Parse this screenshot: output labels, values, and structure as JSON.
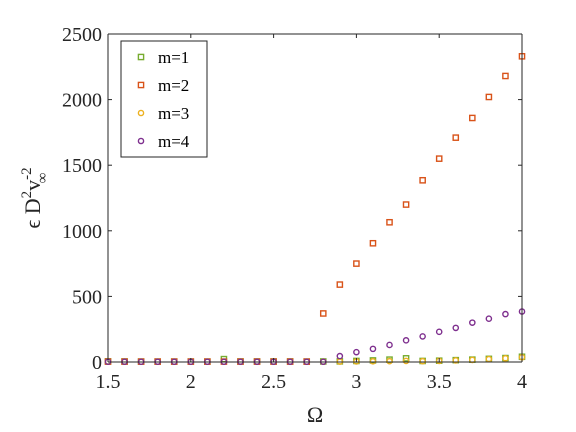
{
  "chart_data": {
    "type": "scatter",
    "xlabel": "Ω",
    "ylabel": "ε D²v∞⁻²",
    "ylabel_parts": {
      "main": "ϵ D",
      "sup1": "2",
      "v": "v",
      "sub": "∞",
      "sup2": "-2"
    },
    "xlim": [
      1.5,
      4
    ],
    "ylim": [
      0,
      2500
    ],
    "xticks": [
      "1.5",
      "2",
      "2.5",
      "3",
      "3.5",
      "4"
    ],
    "yticks": [
      "0",
      "500",
      "1000",
      "1500",
      "2000",
      "2500"
    ],
    "grid": false,
    "legend_position": "top-left",
    "x": [
      1.5,
      1.6,
      1.7,
      1.8,
      1.9,
      2.0,
      2.1,
      2.2,
      2.3,
      2.4,
      2.5,
      2.6,
      2.7,
      2.8,
      2.9,
      3.0,
      3.1,
      3.2,
      3.3,
      3.4,
      3.5,
      3.6,
      3.7,
      3.8,
      3.9,
      4.0
    ],
    "series": [
      {
        "name": "m=1",
        "marker": "square",
        "color": "#77AC30",
        "values": [
          5,
          4,
          3,
          3,
          3,
          3,
          3,
          22,
          4,
          4,
          4,
          4,
          3,
          4,
          5,
          8,
          12,
          18,
          28,
          8,
          10,
          14,
          18,
          24,
          30,
          40
        ]
      },
      {
        "name": "m=2",
        "marker": "square",
        "color": "#D95319",
        "values": [
          3,
          3,
          3,
          3,
          3,
          3,
          3,
          3,
          3,
          3,
          3,
          3,
          3,
          370,
          590,
          750,
          905,
          1065,
          1200,
          1385,
          1550,
          1710,
          1860,
          2020,
          2180,
          2330
        ]
      },
      {
        "name": "m=3",
        "marker": "circle",
        "color": "#EDB120",
        "values": [
          2,
          2,
          2,
          2,
          2,
          2,
          2,
          2,
          2,
          2,
          2,
          2,
          2,
          2,
          3,
          4,
          5,
          6,
          8,
          6,
          8,
          12,
          16,
          22,
          28,
          36
        ]
      },
      {
        "name": "m=4",
        "marker": "circle",
        "color": "#7E2F8E",
        "values": [
          2,
          2,
          2,
          2,
          2,
          2,
          2,
          2,
          2,
          2,
          2,
          2,
          2,
          2,
          45,
          75,
          100,
          130,
          165,
          195,
          230,
          260,
          300,
          330,
          365,
          385
        ]
      }
    ]
  }
}
